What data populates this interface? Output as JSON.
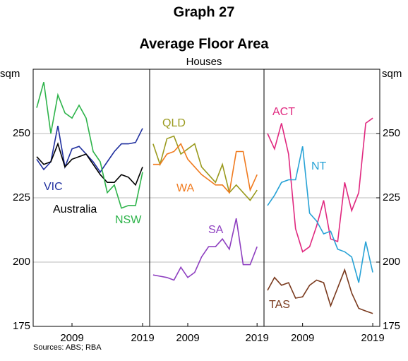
{
  "title": "Graph 27",
  "subtitle": "Average Floor Area",
  "note": "Sources:   ABS; RBA",
  "chart_data": [
    {
      "type": "line",
      "subtitle": "Houses",
      "y_label": "sqm",
      "x": [
        2004,
        2005,
        2006,
        2007,
        2008,
        2009,
        2010,
        2011,
        2012,
        2013,
        2014,
        2015,
        2016,
        2017,
        2018,
        2019
      ],
      "xlim": [
        2003.5,
        2020
      ],
      "xticks": [
        2009,
        2019
      ],
      "ylim": [
        175,
        275
      ],
      "yticks": [
        175,
        200,
        225,
        250
      ],
      "grid": true,
      "series": [
        {
          "name": "VIC",
          "color": "#1f2f9e",
          "values": [
            240,
            236,
            239,
            253,
            237,
            244,
            245,
            242,
            239,
            235,
            239,
            243,
            246,
            246,
            246.5,
            252
          ]
        },
        {
          "name": "Australia",
          "color": "#000000",
          "values": [
            241,
            238,
            239,
            246,
            237,
            240,
            241,
            242,
            238,
            234,
            231,
            231,
            234,
            233,
            230,
            237
          ]
        },
        {
          "name": "NSW",
          "color": "#2db34a",
          "values": [
            260,
            270,
            250,
            265,
            258,
            256,
            261,
            256,
            243,
            239,
            227,
            230,
            221,
            222,
            222,
            235
          ]
        }
      ]
    },
    {
      "type": "line",
      "x": [
        2004,
        2005,
        2006,
        2007,
        2008,
        2009,
        2010,
        2011,
        2012,
        2013,
        2014,
        2015,
        2016,
        2017,
        2018,
        2019
      ],
      "xlim": [
        2003.5,
        2020
      ],
      "xticks": [
        2009,
        2019
      ],
      "ylim": [
        175,
        275
      ],
      "yticks": [
        175,
        200,
        225,
        250
      ],
      "grid": true,
      "series": [
        {
          "name": "QLD",
          "color": "#9a9a1e",
          "values": [
            246,
            238,
            248,
            249,
            242,
            244,
            246,
            237,
            234,
            231,
            238,
            227,
            230,
            227,
            224,
            228
          ]
        },
        {
          "name": "WA",
          "color": "#f07a1e",
          "values": [
            238,
            238,
            242,
            243,
            246,
            240,
            237,
            234,
            232,
            230,
            230,
            227,
            243,
            243,
            228,
            234
          ]
        },
        {
          "name": "SA",
          "color": "#8e3fc0",
          "values": [
            195,
            194.5,
            194,
            193,
            198,
            194,
            196,
            202,
            206,
            206,
            209,
            205,
            217,
            199,
            199,
            206
          ]
        }
      ]
    },
    {
      "type": "line",
      "y2_label": "sqm",
      "x": [
        2004,
        2005,
        2006,
        2007,
        2008,
        2009,
        2010,
        2011,
        2012,
        2013,
        2014,
        2015,
        2016,
        2017,
        2018,
        2019
      ],
      "xlim": [
        2003.5,
        2020
      ],
      "xticks": [
        2009,
        2019
      ],
      "ylim": [
        175,
        275
      ],
      "yticks": [
        175,
        200,
        225,
        250
      ],
      "grid": true,
      "y2lim": [
        175,
        275
      ],
      "y2ticks": [
        175,
        200,
        225,
        250
      ],
      "series": [
        {
          "name": "ACT",
          "color": "#e0287f",
          "values": [
            250,
            244,
            254,
            242,
            213,
            204,
            206,
            214,
            224,
            209,
            208,
            231,
            220,
            227,
            254,
            256
          ]
        },
        {
          "name": "NT",
          "color": "#27a2d6",
          "values": [
            222,
            226,
            231,
            232,
            232,
            245,
            219,
            216,
            211,
            212,
            205,
            204,
            202,
            192,
            208,
            196
          ]
        },
        {
          "name": "TAS",
          "color": "#7a3a1e",
          "values": [
            189,
            194,
            191,
            192,
            186,
            186.5,
            191,
            193,
            192,
            183,
            190,
            197,
            188,
            182,
            181,
            180
          ]
        }
      ]
    }
  ]
}
